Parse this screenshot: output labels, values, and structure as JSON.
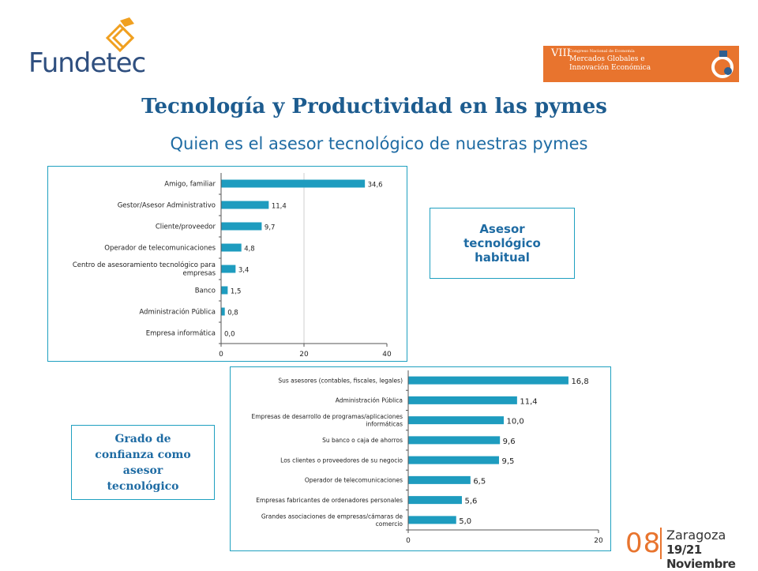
{
  "header": {
    "logo_text_1": "Funde",
    "logo_text_2": "tec",
    "congress_roman": "VIII",
    "congress_small": "Congreso Nacional de Economía",
    "congress_line1": "Mercados Globales e",
    "congress_line2": "Innovación Económica"
  },
  "title": "Tecnología y Productividad en las pymes",
  "subtitle": "Quien es el asesor tecnológico de nuestras pymes",
  "callouts": {
    "first": "Asesor tecnológico habitual",
    "second": "Grado de confianza como asesor tecnológico"
  },
  "footer": {
    "number": "08",
    "city": "Zaragoza",
    "dates": "19/21 Noviembre"
  },
  "colors": {
    "bar": "#1e9cbf",
    "accent": "#e8742e",
    "title": "#1d5c8f"
  },
  "chart_data": [
    {
      "type": "bar",
      "orientation": "horizontal",
      "categories": [
        "Amigo, familiar",
        "Gestor/Asesor Administrativo",
        "Cliente/proveedor",
        "Operador de telecomunicaciones",
        "Centro de asesoramiento tecnológico para empresas",
        "Banco",
        "Administración Pública",
        "Empresa informática"
      ],
      "category_lines": [
        [
          "Amigo, familiar"
        ],
        [
          "Gestor/Asesor Administrativo"
        ],
        [
          "Cliente/proveedor"
        ],
        [
          "Operador de telecomunicaciones"
        ],
        [
          "Centro de asesoramiento tecnológico para",
          "empresas"
        ],
        [
          "Banco"
        ],
        [
          "Administración Pública"
        ],
        [
          "Empresa informática"
        ]
      ],
      "values": [
        34.6,
        11.4,
        9.7,
        4.8,
        3.4,
        1.5,
        0.8,
        0.0
      ],
      "value_labels": [
        "34,6",
        "11,4",
        "9,7",
        "4,8",
        "3,4",
        "1,5",
        "0,8",
        "0,0"
      ],
      "xlim": [
        0,
        40
      ],
      "ticks": [
        0,
        20,
        40
      ],
      "tick_labels": [
        "0",
        "20",
        "40"
      ],
      "grid": true
    },
    {
      "type": "bar",
      "orientation": "horizontal",
      "categories": [
        "Sus asesores (contables, fiscales, legales)",
        "Administración Pública",
        "Empresas de desarrollo de programas/aplicaciones informáticas",
        "Su banco o caja de ahorros",
        "Los clientes o proveedores de su negocio",
        "Operador de telecomunicaciones",
        "Empresas fabricantes de ordenadores personales",
        "Grandes asociaciones de empresas/cámaras de comercio"
      ],
      "category_lines": [
        [
          "Sus asesores (contables, fiscales, legales)"
        ],
        [
          "Administración Pública"
        ],
        [
          "Empresas de desarrollo de programas/aplicaciones",
          "informáticas"
        ],
        [
          "Su banco o caja de ahorros"
        ],
        [
          "Los clientes o proveedores de su negocio"
        ],
        [
          "Operador de telecomunicaciones"
        ],
        [
          "Empresas fabricantes de ordenadores personales"
        ],
        [
          "Grandes asociaciones de empresas/cámaras de",
          "comercio"
        ]
      ],
      "values": [
        16.8,
        11.4,
        10.0,
        9.6,
        9.5,
        6.5,
        5.6,
        5.0
      ],
      "value_labels": [
        "16,8",
        "11,4",
        "10,0",
        "9,6",
        "9,5",
        "6,5",
        "5,6",
        "5,0"
      ],
      "xlim": [
        0,
        20
      ],
      "ticks": [
        0,
        20
      ],
      "tick_labels": [
        "0",
        "20"
      ],
      "grid": false
    }
  ]
}
